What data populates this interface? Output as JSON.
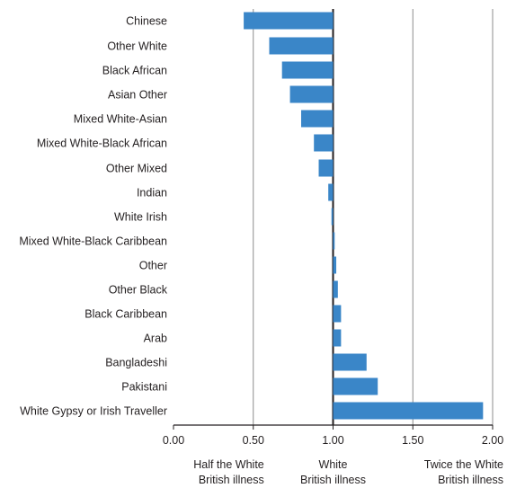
{
  "chart_data": {
    "type": "bar",
    "orientation": "horizontal",
    "baseline": 1.0,
    "categories": [
      "Chinese",
      "Other White",
      "Black African",
      "Asian Other",
      "Mixed White-Asian",
      "Mixed White-Black African",
      "Other Mixed",
      "Indian",
      "White Irish",
      "Mixed White-Black Caribbean",
      "Other",
      "Other Black",
      "Black Caribbean",
      "Arab",
      "Bangladeshi",
      "Pakistani",
      "White Gypsy or Irish Traveller"
    ],
    "values": [
      0.44,
      0.6,
      0.68,
      0.73,
      0.8,
      0.88,
      0.91,
      0.97,
      0.99,
      1.01,
      1.02,
      1.03,
      1.05,
      1.05,
      1.21,
      1.28,
      1.94
    ],
    "xlim": [
      0,
      2
    ],
    "xticks": [
      "0.00",
      "0.50",
      "1.00",
      "1.50",
      "2.00"
    ],
    "xtick_values": [
      0,
      0.5,
      1,
      1.5,
      2
    ],
    "grid": "vertical",
    "annotations": [
      {
        "x": 0.5,
        "lines": [
          "Half the White",
          "British illness"
        ],
        "align": "end"
      },
      {
        "x": 1.0,
        "lines": [
          "White",
          "British illness"
        ],
        "align": "middle"
      },
      {
        "x": 2.0,
        "lines": [
          "Twice the White",
          "British illness"
        ],
        "align": "end"
      }
    ],
    "colors": {
      "bar": "#3a86c8",
      "axis": "#231f20",
      "grid": "#8c8c8c"
    }
  }
}
